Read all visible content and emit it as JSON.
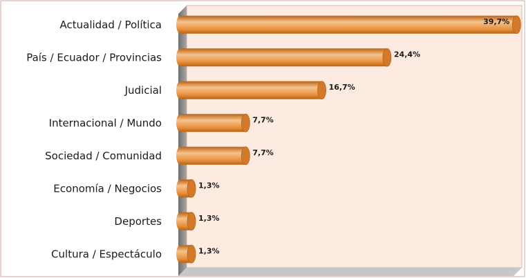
{
  "chart_data": {
    "type": "bar",
    "orientation": "horizontal",
    "categories": [
      "Actualidad / Política",
      "País / Ecuador / Provincias",
      "Judicial",
      "Internacional / Mundo",
      "Sociedad / Comunidad",
      "Economía / Negocios",
      "Deportes",
      "Cultura / Espectáculo"
    ],
    "values": [
      39.7,
      24.4,
      16.7,
      7.7,
      7.7,
      1.3,
      1.3,
      1.3
    ],
    "data_labels": [
      "39,7%",
      "24,4%",
      "16,7%",
      "7,7%",
      "7,7%",
      "1,3%",
      "1,3%",
      "1,3%"
    ],
    "title": "",
    "xlabel": "",
    "ylabel": "",
    "xlim": [
      0,
      40
    ],
    "grid": false,
    "legend": "none",
    "style": "3d-cylinder",
    "colors": {
      "bar": "#e8913f",
      "bar_light": "#f6c38d",
      "bar_dark": "#b96414",
      "bar_cap": "#d37a2a",
      "back_wall": "#fdebe2",
      "side_wall": "#9a9a9a",
      "floor": "#c7c7c7",
      "border": "#cfa898"
    }
  }
}
